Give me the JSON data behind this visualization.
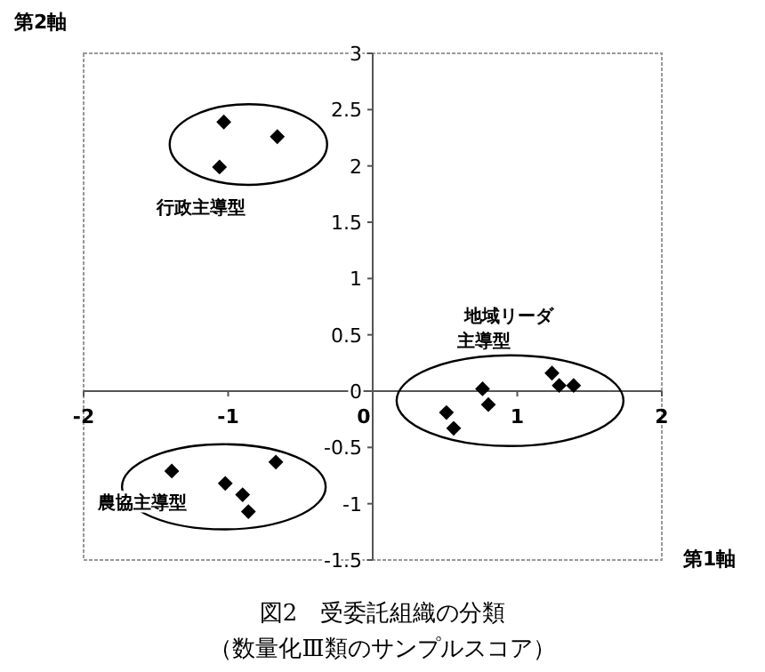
{
  "chart_data": {
    "type": "scatter",
    "title": "図2　受委託組織の分類",
    "subtitle": "（数量化Ⅲ類のサンプルスコア）",
    "xlabel": "第1軸",
    "ylabel": "第2軸",
    "xlim": [
      -2,
      2
    ],
    "ylim": [
      -1.5,
      3
    ],
    "xticks": [
      -2,
      -1,
      0,
      1,
      2
    ],
    "yticks": [
      -1.5,
      -1,
      -0.5,
      0,
      0.5,
      1,
      1.5,
      2,
      2.5,
      3
    ],
    "marker": "diamond",
    "grid": false,
    "series": [
      {
        "color": "#000000",
        "x": [
          -1.03,
          -0.66,
          -1.06
        ],
        "values": [
          2.39,
          2.26,
          1.99
        ]
      },
      {
        "color": "#000000",
        "x": [
          -1.39,
          -1.02,
          -0.9,
          -0.86,
          -0.67
        ],
        "values": [
          -0.71,
          -0.82,
          -0.92,
          -1.07,
          -0.63
        ]
      },
      {
        "color": "#000000",
        "x": [
          0.51,
          0.56,
          0.76,
          0.8,
          1.24,
          1.29,
          1.39
        ],
        "values": [
          -0.19,
          -0.33,
          0.02,
          -0.12,
          0.16,
          0.05,
          0.05
        ]
      }
    ],
    "annotations": [
      "行政主導型",
      "農協主導型",
      "地域リーダ",
      "主導型"
    ]
  }
}
